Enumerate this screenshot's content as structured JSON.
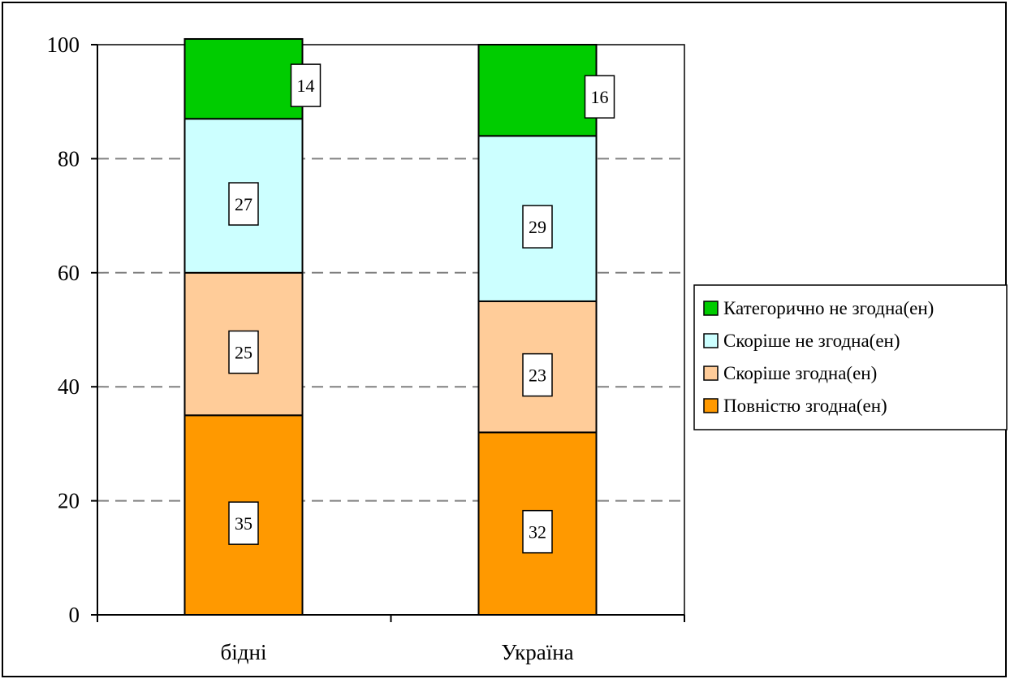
{
  "chart_data": {
    "type": "bar",
    "stacked": true,
    "categories": [
      "бідні",
      "Україна"
    ],
    "series": [
      {
        "name": "Повністю згодна(ен)",
        "values": [
          35,
          32
        ],
        "color": "#FF9900"
      },
      {
        "name": "Скоріше згодна(ен)",
        "values": [
          25,
          23
        ],
        "color": "#FFCC99"
      },
      {
        "name": "Скоріше не згодна(ен)",
        "values": [
          27,
          29
        ],
        "color": "#CCFFFF"
      },
      {
        "name": "Категорично не згодна(ен)",
        "values": [
          14,
          16
        ],
        "color": "#00CC00"
      }
    ],
    "ylim": [
      0,
      100
    ],
    "yticks": [
      0,
      20,
      40,
      60,
      80,
      100
    ],
    "title": "",
    "xlabel": "",
    "ylabel": "",
    "grid": "horizontal dashed",
    "legend_position": "right",
    "legend_order": [
      "Категорично не згодна(ен)",
      "Скоріше не згодна(ен)",
      "Скоріше згодна(ен)",
      "Повністю згодна(ен)"
    ]
  }
}
